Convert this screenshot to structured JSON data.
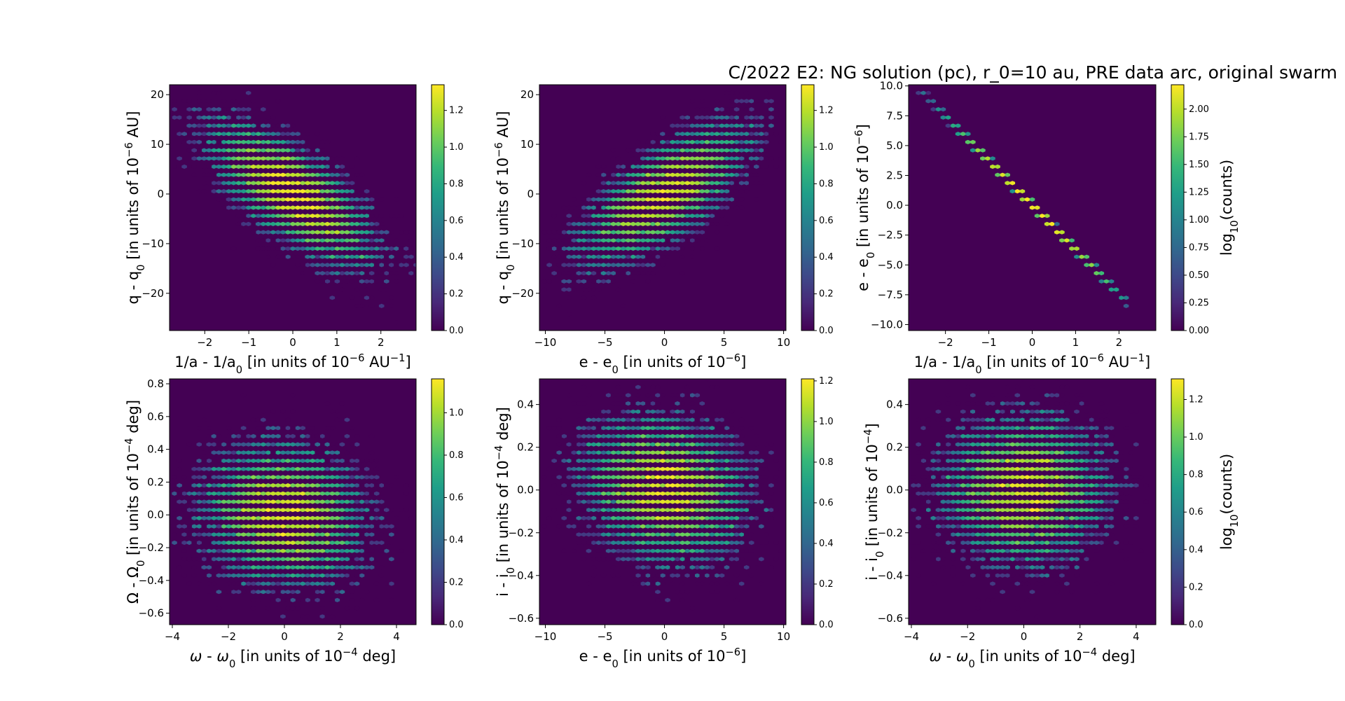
{
  "figure": {
    "title": "C/2022 E2: NG solution (pc), r_0=10 au, PRE data arc, original swarm"
  },
  "colormap": {
    "name": "viridis",
    "stops": [
      "#440154",
      "#482878",
      "#3e4989",
      "#31688e",
      "#26828e",
      "#1f9e89",
      "#35b779",
      "#6ece58",
      "#b5de2b",
      "#fde725"
    ]
  },
  "chart_data": [
    {
      "type": "heatmap",
      "subtype": "hexbin",
      "xlabel_html": "1/a - 1/a<tspan baseline-shift=\"sub\" font-size=\"70%\">0</tspan> [in units of 10<tspan baseline-shift=\"super\" font-size=\"70%\">−6</tspan> AU<tspan baseline-shift=\"super\" font-size=\"70%\">−1</tspan>]",
      "ylabel_html": "q - q<tspan baseline-shift=\"sub\" font-size=\"70%\">0</tspan> [in units of 10<tspan baseline-shift=\"super\" font-size=\"70%\">−6</tspan> AU]",
      "xlim": [
        -2.8,
        2.8
      ],
      "ylim": [
        -27.5,
        22
      ],
      "xticks": [
        -2,
        -1,
        0,
        1,
        2
      ],
      "yticks": [
        -20,
        -10,
        0,
        10,
        20
      ],
      "xtick_labels": [
        "−2",
        "−1",
        "0",
        "1",
        "2"
      ],
      "ytick_labels": [
        "−20",
        "−10",
        "0",
        "10",
        "20"
      ],
      "distribution": {
        "center": [
          0,
          0
        ],
        "sigma": [
          0.85,
          6.5
        ],
        "correlation": -0.72
      },
      "colorbar": {
        "min": 0,
        "max": 1.34,
        "ticks": [
          0.0,
          0.2,
          0.4,
          0.6,
          0.8,
          1.0,
          1.2
        ],
        "tick_labels": [
          "0.0",
          "0.2",
          "0.4",
          "0.6",
          "0.8",
          "1.0",
          "1.2"
        ],
        "label": ""
      }
    },
    {
      "type": "heatmap",
      "subtype": "hexbin",
      "xlabel_html": "e - e<tspan baseline-shift=\"sub\" font-size=\"70%\">0</tspan> [in units of 10<tspan baseline-shift=\"super\" font-size=\"70%\">−6</tspan>]",
      "ylabel_html": "q - q<tspan baseline-shift=\"sub\" font-size=\"70%\">0</tspan> [in units of 10<tspan baseline-shift=\"super\" font-size=\"70%\">−6</tspan> AU]",
      "xlim": [
        -10.5,
        10.2
      ],
      "ylim": [
        -27.5,
        22
      ],
      "xticks": [
        -10,
        -5,
        0,
        5,
        10
      ],
      "yticks": [
        -20,
        -10,
        0,
        10,
        20
      ],
      "xtick_labels": [
        "−10",
        "−5",
        "0",
        "5",
        "10"
      ],
      "ytick_labels": [
        "−20",
        "−10",
        "0",
        "10",
        "20"
      ],
      "distribution": {
        "center": [
          0,
          0
        ],
        "sigma": [
          3.2,
          6.5
        ],
        "correlation": 0.72
      },
      "colorbar": {
        "min": 0,
        "max": 1.34,
        "ticks": [
          0.0,
          0.2,
          0.4,
          0.6,
          0.8,
          1.0,
          1.2
        ],
        "tick_labels": [
          "0.0",
          "0.2",
          "0.4",
          "0.6",
          "0.8",
          "1.0",
          "1.2"
        ],
        "label": ""
      }
    },
    {
      "type": "heatmap",
      "subtype": "hexbin",
      "xlabel_html": "1/a - 1/a<tspan baseline-shift=\"sub\" font-size=\"70%\">0</tspan> [in units of 10<tspan baseline-shift=\"super\" font-size=\"70%\">−6</tspan> AU<tspan baseline-shift=\"super\" font-size=\"70%\">−1</tspan>]",
      "ylabel_html": "e - e<tspan baseline-shift=\"sub\" font-size=\"70%\">0</tspan> [in units of 10<tspan baseline-shift=\"super\" font-size=\"70%\">−6</tspan>]",
      "xlim": [
        -2.85,
        2.85
      ],
      "ylim": [
        -10.5,
        10.1
      ],
      "xticks": [
        -2,
        -1,
        0,
        1,
        2
      ],
      "yticks": [
        -10.0,
        -7.5,
        -5.0,
        -2.5,
        0.0,
        2.5,
        5.0,
        7.5,
        10.0
      ],
      "xtick_labels": [
        "−2",
        "−1",
        "0",
        "1",
        "2"
      ],
      "ytick_labels": [
        "−10.0",
        "−7.5",
        "−5.0",
        "−2.5",
        "0.0",
        "2.5",
        "5.0",
        "7.5",
        "10.0"
      ],
      "distribution": {
        "center": [
          0,
          0
        ],
        "line_slope": -3.72,
        "line_x_range": [
          -2.6,
          2.2
        ],
        "sigma_along": 0.85
      },
      "colorbar": {
        "min": 0,
        "max": 2.22,
        "ticks": [
          0.0,
          0.25,
          0.5,
          0.75,
          1.0,
          1.25,
          1.5,
          1.75,
          2.0
        ],
        "tick_labels": [
          "0.00",
          "0.25",
          "0.50",
          "0.75",
          "1.00",
          "1.25",
          "1.50",
          "1.75",
          "2.00"
        ],
        "label_html": "log<tspan baseline-shift=\"sub\" font-size=\"70%\">10</tspan>(counts)"
      }
    },
    {
      "type": "heatmap",
      "subtype": "hexbin",
      "xlabel_html": "<tspan font-style=\"italic\">ω</tspan> - <tspan font-style=\"italic\">ω</tspan><tspan baseline-shift=\"sub\" font-size=\"70%\">0</tspan> [in units of 10<tspan baseline-shift=\"super\" font-size=\"70%\">−4</tspan> deg]",
      "ylabel_html": "Ω - Ω<tspan baseline-shift=\"sub\" font-size=\"70%\">0</tspan> [in units of 10<tspan baseline-shift=\"super\" font-size=\"70%\">−4</tspan> deg]",
      "xlim": [
        -4.1,
        4.7
      ],
      "ylim": [
        -0.67,
        0.83
      ],
      "xticks": [
        -4,
        -2,
        0,
        2,
        4
      ],
      "yticks": [
        -0.6,
        -0.4,
        -0.2,
        0.0,
        0.2,
        0.4,
        0.6,
        0.8
      ],
      "xtick_labels": [
        "−4",
        "−2",
        "0",
        "2",
        "4"
      ],
      "ytick_labels": [
        "−0.6",
        "−0.4",
        "−0.2",
        "0.0",
        "0.2",
        "0.4",
        "0.6",
        "0.8"
      ],
      "distribution": {
        "center": [
          0,
          0
        ],
        "sigma": [
          1.35,
          0.2
        ],
        "correlation": -0.1
      },
      "colorbar": {
        "min": 0,
        "max": 1.16,
        "ticks": [
          0.0,
          0.2,
          0.4,
          0.6,
          0.8,
          1.0
        ],
        "tick_labels": [
          "0.0",
          "0.2",
          "0.4",
          "0.6",
          "0.8",
          "1.0"
        ],
        "label": ""
      }
    },
    {
      "type": "heatmap",
      "subtype": "hexbin",
      "xlabel_html": "e - e<tspan baseline-shift=\"sub\" font-size=\"70%\">0</tspan> [in units of 10<tspan baseline-shift=\"super\" font-size=\"70%\">−6</tspan>]",
      "ylabel_html": "i - i<tspan baseline-shift=\"sub\" font-size=\"70%\">0</tspan> [in units of 10<tspan baseline-shift=\"super\" font-size=\"70%\">−4</tspan> deg]",
      "xlim": [
        -10.5,
        10.2
      ],
      "ylim": [
        -0.63,
        0.52
      ],
      "xticks": [
        -10,
        -5,
        0,
        5,
        10
      ],
      "yticks": [
        -0.6,
        -0.4,
        -0.2,
        0.0,
        0.2,
        0.4
      ],
      "xtick_labels": [
        "−10",
        "−5",
        "0",
        "5",
        "10"
      ],
      "ytick_labels": [
        "−0.6",
        "−0.4",
        "−0.2",
        "0.0",
        "0.2",
        "0.4"
      ],
      "distribution": {
        "center": [
          0,
          0
        ],
        "sigma": [
          3.2,
          0.16
        ],
        "correlation": -0.15
      },
      "colorbar": {
        "min": 0,
        "max": 1.21,
        "ticks": [
          0.0,
          0.2,
          0.4,
          0.6,
          0.8,
          1.0,
          1.2
        ],
        "tick_labels": [
          "0.0",
          "0.2",
          "0.4",
          "0.6",
          "0.8",
          "1.0",
          "1.2"
        ],
        "label": ""
      }
    },
    {
      "type": "heatmap",
      "subtype": "hexbin",
      "xlabel_html": "<tspan font-style=\"italic\">ω</tspan> - <tspan font-style=\"italic\">ω</tspan><tspan baseline-shift=\"sub\" font-size=\"70%\">0</tspan> [in units of 10<tspan baseline-shift=\"super\" font-size=\"70%\">−4</tspan> deg]",
      "ylabel_html": "i - i<tspan baseline-shift=\"sub\" font-size=\"70%\">0</tspan> [in units of 10<tspan baseline-shift=\"super\" font-size=\"70%\">−4</tspan>]",
      "xlim": [
        -4.1,
        4.7
      ],
      "ylim": [
        -0.63,
        0.52
      ],
      "xticks": [
        -4,
        -2,
        0,
        2,
        4
      ],
      "yticks": [
        -0.6,
        -0.4,
        -0.2,
        0.0,
        0.2,
        0.4
      ],
      "xtick_labels": [
        "−4",
        "−2",
        "0",
        "2",
        "4"
      ],
      "ytick_labels": [
        "−0.6",
        "−0.4",
        "−0.2",
        "0.0",
        "0.2",
        "0.4"
      ],
      "distribution": {
        "center": [
          0,
          0
        ],
        "sigma": [
          1.35,
          0.16
        ],
        "correlation": 0.0
      },
      "colorbar": {
        "min": 0,
        "max": 1.31,
        "ticks": [
          0.0,
          0.2,
          0.4,
          0.6,
          0.8,
          1.0,
          1.2
        ],
        "tick_labels": [
          "0.0",
          "0.2",
          "0.4",
          "0.6",
          "0.8",
          "1.0",
          "1.2"
        ],
        "label_html": "log<tspan baseline-shift=\"sub\" font-size=\"70%\">10</tspan>(counts)"
      }
    }
  ]
}
